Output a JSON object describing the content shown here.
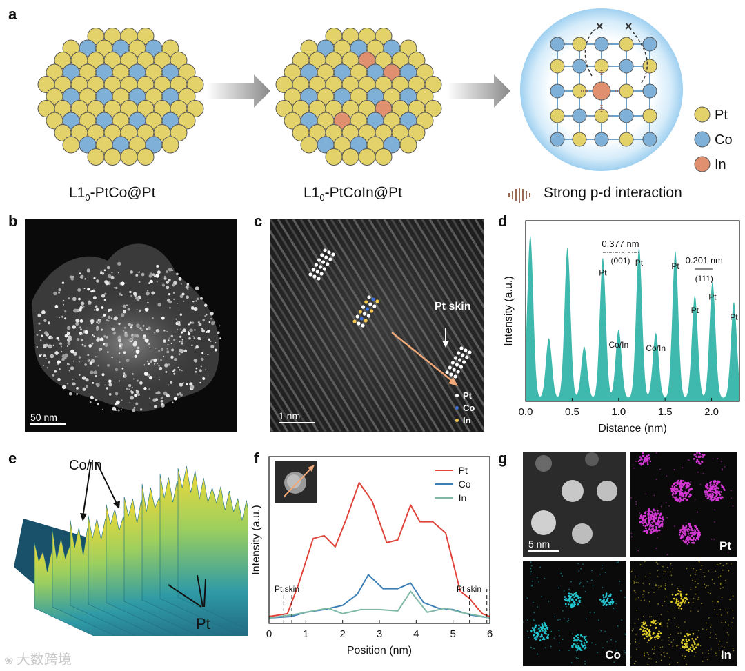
{
  "panels": {
    "a": "a",
    "b": "b",
    "c": "c",
    "d": "d",
    "e": "e",
    "f": "f",
    "g": "g"
  },
  "panel_a": {
    "label1_prefix": "L1",
    "label1_sub": "0",
    "label1_suffix": "-PtCo@Pt",
    "label2_prefix": "L1",
    "label2_sub": "0",
    "label2_suffix": "-PtCoIn@Pt",
    "interaction_label": "Strong p-d interaction",
    "legend": [
      {
        "name": "Pt",
        "color": "#e3d26a"
      },
      {
        "name": "Co",
        "color": "#7fb1d8"
      },
      {
        "name": "In",
        "color": "#e0906e"
      }
    ]
  },
  "panel_b": {
    "scalebar": "50 nm"
  },
  "panel_c": {
    "scalebar": "1 nm",
    "skin_label": "Pt skin",
    "legend": [
      {
        "name": "Pt",
        "color": "#ffffff"
      },
      {
        "name": "Co",
        "color": "#3b6fd6"
      },
      {
        "name": "In",
        "color": "#f2c74a"
      }
    ]
  },
  "panel_e": {
    "label_coin": "Co/In",
    "label_pt": "Pt"
  },
  "panel_g": {
    "scalebar": "5 nm",
    "tiles": [
      "Pt",
      "Co",
      "In"
    ]
  },
  "watermark": "大数跨境",
  "chart_data": [
    {
      "id": "d",
      "type": "area",
      "title": "",
      "xlabel": "Distance (nm)",
      "ylabel": "Intensity (a.u.)",
      "xlim": [
        0,
        2.3
      ],
      "x_ticks": [
        "0.0",
        "0.5",
        "1.0",
        "1.5",
        "2.0"
      ],
      "x_tick_values": [
        0,
        0.5,
        1.0,
        1.5,
        2.0
      ],
      "color": "#3fb8ad",
      "peaks": [
        {
          "x": 0.05,
          "h": 0.95
        },
        {
          "x": 0.25,
          "h": 0.35
        },
        {
          "x": 0.45,
          "h": 0.88
        },
        {
          "x": 0.63,
          "h": 0.3
        },
        {
          "x": 0.83,
          "h": 0.82
        },
        {
          "x": 1.0,
          "h": 0.4
        },
        {
          "x": 1.22,
          "h": 0.88
        },
        {
          "x": 1.4,
          "h": 0.38
        },
        {
          "x": 1.61,
          "h": 0.86
        },
        {
          "x": 1.82,
          "h": 0.6
        },
        {
          "x": 2.01,
          "h": 0.68
        },
        {
          "x": 2.24,
          "h": 0.56
        }
      ],
      "peak_labels": [
        {
          "text": "Pt",
          "x": 0.83
        },
        {
          "text": "Pt",
          "x": 1.22
        },
        {
          "text": "Pt",
          "x": 1.61
        },
        {
          "text": "Pt",
          "x": 1.82
        },
        {
          "text": "Pt",
          "x": 2.01
        },
        {
          "text": "Pt",
          "x": 2.24
        },
        {
          "text": "Co/In",
          "x": 1.0
        },
        {
          "text": "Co/In",
          "x": 1.4
        }
      ],
      "annotations": [
        {
          "value": "0.377 nm",
          "plane": "(001)"
        },
        {
          "value": "0.201 nm",
          "plane": "(111)"
        }
      ]
    },
    {
      "id": "f",
      "type": "line",
      "title": "",
      "xlabel": "Position (nm)",
      "ylabel": "Intensity (a.u.)",
      "xlim": [
        0,
        6
      ],
      "x_ticks": [
        "0",
        "1",
        "2",
        "3",
        "4",
        "5",
        "6"
      ],
      "x_tick_values": [
        0,
        1,
        2,
        3,
        4,
        5,
        6
      ],
      "ylim": [
        0,
        1
      ],
      "annotations": [
        "Pt skin",
        "Pt skin"
      ],
      "skin_lines": [
        0.4,
        0.62,
        5.45,
        5.92
      ],
      "series": [
        {
          "name": "Pt",
          "color": "#e0453c",
          "x": [
            0,
            0.5,
            0.8,
            1.2,
            1.5,
            1.8,
            2.1,
            2.45,
            2.8,
            3.2,
            3.5,
            3.85,
            4.1,
            4.45,
            4.8,
            5.2,
            5.45,
            5.6,
            5.8,
            6.0
          ],
          "y": [
            0.02,
            0.04,
            0.25,
            0.58,
            0.6,
            0.52,
            0.72,
            0.98,
            0.85,
            0.55,
            0.57,
            0.82,
            0.7,
            0.7,
            0.62,
            0.2,
            0.15,
            0.1,
            0.04,
            0.02
          ]
        },
        {
          "name": "Co",
          "color": "#3c7fb6",
          "x": [
            0,
            0.6,
            1.0,
            1.5,
            2.0,
            2.4,
            2.7,
            3.1,
            3.5,
            3.85,
            4.2,
            4.6,
            5.0,
            5.5,
            6.0
          ],
          "y": [
            0.01,
            0.02,
            0.05,
            0.07,
            0.1,
            0.18,
            0.32,
            0.22,
            0.22,
            0.26,
            0.12,
            0.08,
            0.07,
            0.03,
            0.01
          ]
        },
        {
          "name": "In",
          "color": "#7fb8a6",
          "x": [
            0,
            0.6,
            1.0,
            1.6,
            2.0,
            2.5,
            3.0,
            3.5,
            3.85,
            4.3,
            4.8,
            5.2,
            5.6,
            6.0
          ],
          "y": [
            0.01,
            0.03,
            0.05,
            0.08,
            0.04,
            0.07,
            0.07,
            0.06,
            0.2,
            0.05,
            0.08,
            0.05,
            0.03,
            0.01
          ]
        }
      ]
    }
  ]
}
